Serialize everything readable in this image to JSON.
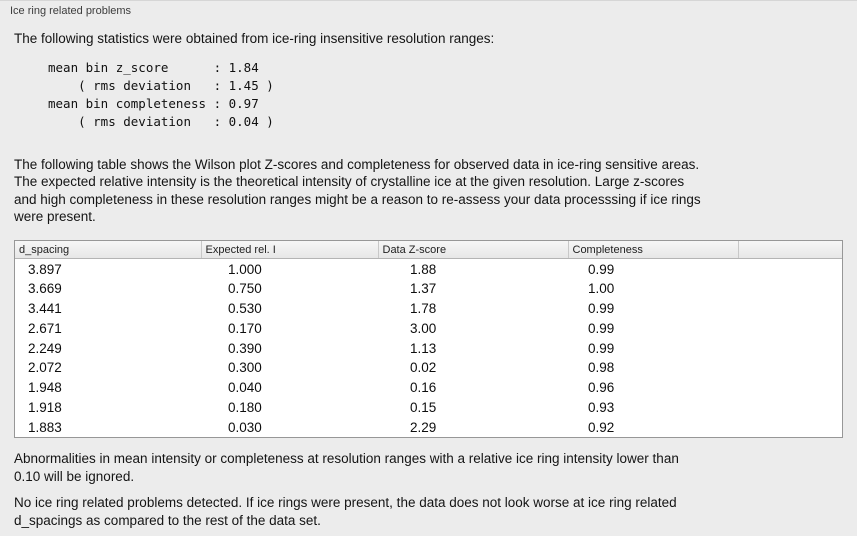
{
  "panel": {
    "title": "Ice ring related problems"
  },
  "intro": "The following statistics were obtained from ice-ring insensitive resolution ranges:",
  "stats_block": {
    "lines": [
      "mean bin z_score      : 1.84",
      "    ( rms deviation   : 1.45 )",
      "mean bin completeness : 0.97",
      "    ( rms deviation   : 0.04 )"
    ]
  },
  "table_description": {
    "lines": [
      "The following table shows the Wilson plot Z-scores and completeness for observed data in ice-ring sensitive areas.",
      "The expected relative intensity is the theoretical intensity of crystalline ice at the given resolution. Large z-scores",
      "and high completeness in these resolution ranges might be a reason to re-assess your data processsing if ice rings",
      "were present."
    ]
  },
  "table": {
    "columns": [
      "d_spacing",
      "Expected rel. I",
      "Data Z-score",
      "Completeness"
    ],
    "rows": [
      [
        "3.897",
        "1.000",
        "1.88",
        "0.99"
      ],
      [
        "3.669",
        "0.750",
        "1.37",
        "1.00"
      ],
      [
        "3.441",
        "0.530",
        "1.78",
        "0.99"
      ],
      [
        "2.671",
        "0.170",
        "3.00",
        "0.99"
      ],
      [
        "2.249",
        "0.390",
        "1.13",
        "0.99"
      ],
      [
        "2.072",
        "0.300",
        "0.02",
        "0.98"
      ],
      [
        "1.948",
        "0.040",
        "0.16",
        "0.96"
      ],
      [
        "1.918",
        "0.180",
        "0.15",
        "0.93"
      ],
      [
        "1.883",
        "0.030",
        "2.29",
        "0.92"
      ]
    ]
  },
  "ignore_note": {
    "lines": [
      "Abnormalities in mean intensity or completeness at resolution ranges with a relative ice ring intensity lower than",
      "0.10 will be ignored."
    ]
  },
  "conclusion": {
    "lines": [
      "No ice ring related problems detected. If ice rings were present, the data does not look worse at ice ring related",
      "d_spacings as compared to the rest of the data set."
    ]
  }
}
